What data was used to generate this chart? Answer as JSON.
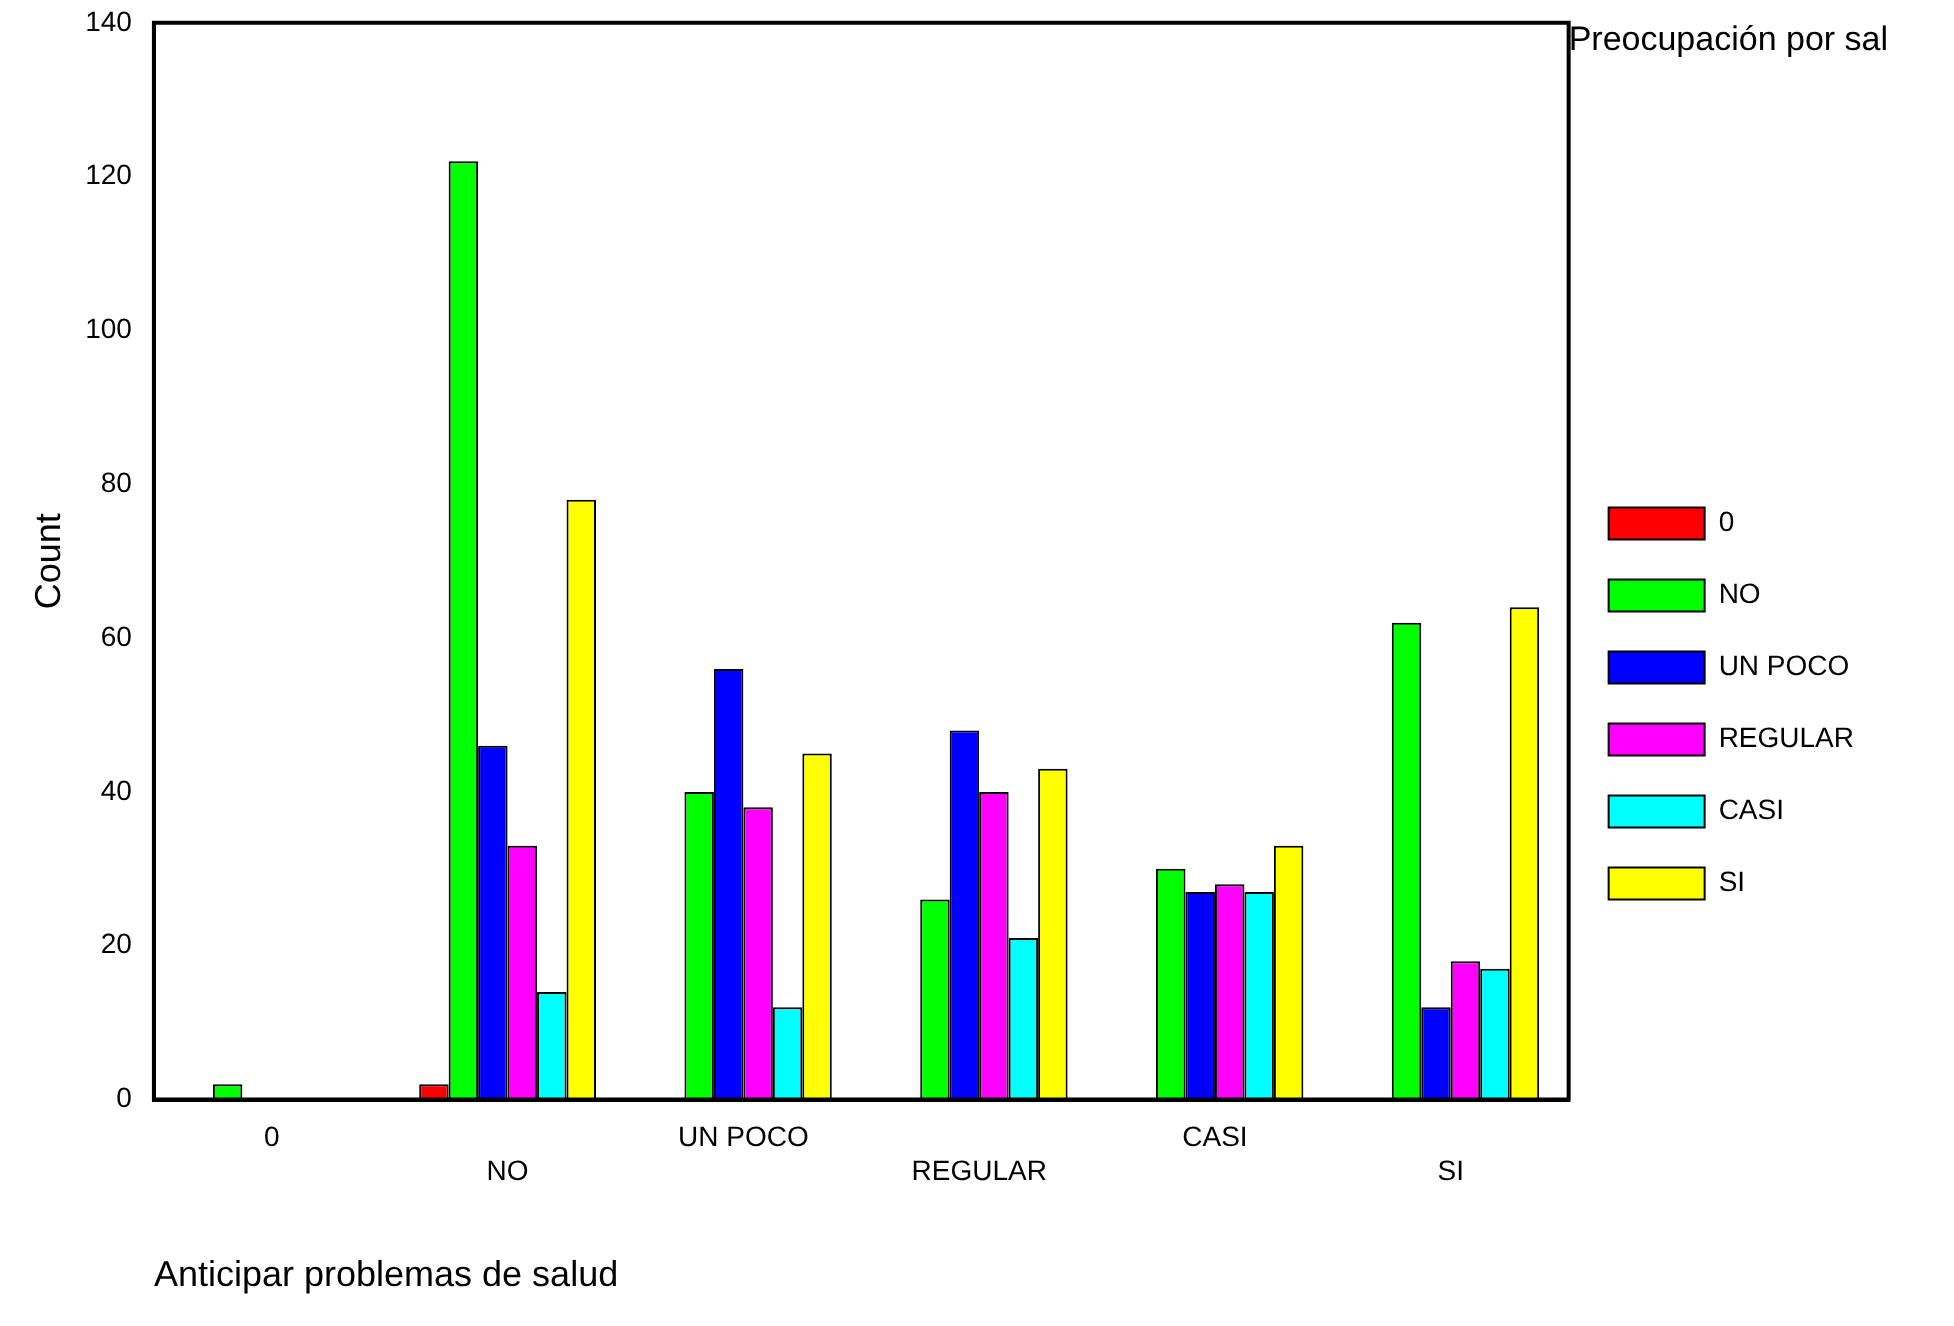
{
  "chart_data": {
    "type": "bar",
    "xlabel": "Anticipar problemas de salud",
    "ylabel": "Count",
    "legend_title": "Preocupación por sal",
    "categories": [
      "0",
      "NO",
      "UN POCO",
      "REGULAR",
      "CASI",
      "SI"
    ],
    "series": [
      {
        "name": "0",
        "color": "#ff0000",
        "values": [
          null,
          2,
          null,
          null,
          null,
          null
        ]
      },
      {
        "name": "NO",
        "color": "#00ff00",
        "values": [
          2,
          122,
          40,
          26,
          30,
          62
        ]
      },
      {
        "name": "UN POCO",
        "color": "#0000ff",
        "values": [
          null,
          46,
          56,
          48,
          27,
          12
        ]
      },
      {
        "name": "REGULAR",
        "color": "#ff00ff",
        "values": [
          null,
          33,
          38,
          40,
          28,
          18
        ]
      },
      {
        "name": "CASI",
        "color": "#00ffff",
        "values": [
          null,
          14,
          12,
          21,
          27,
          17
        ]
      },
      {
        "name": "SI",
        "color": "#ffff00",
        "values": [
          null,
          78,
          45,
          43,
          33,
          64
        ]
      }
    ],
    "ylim": [
      0,
      140
    ],
    "yticks": [
      0,
      20,
      40,
      60,
      80,
      100,
      120,
      140
    ],
    "grid": false,
    "legend": "right"
  }
}
